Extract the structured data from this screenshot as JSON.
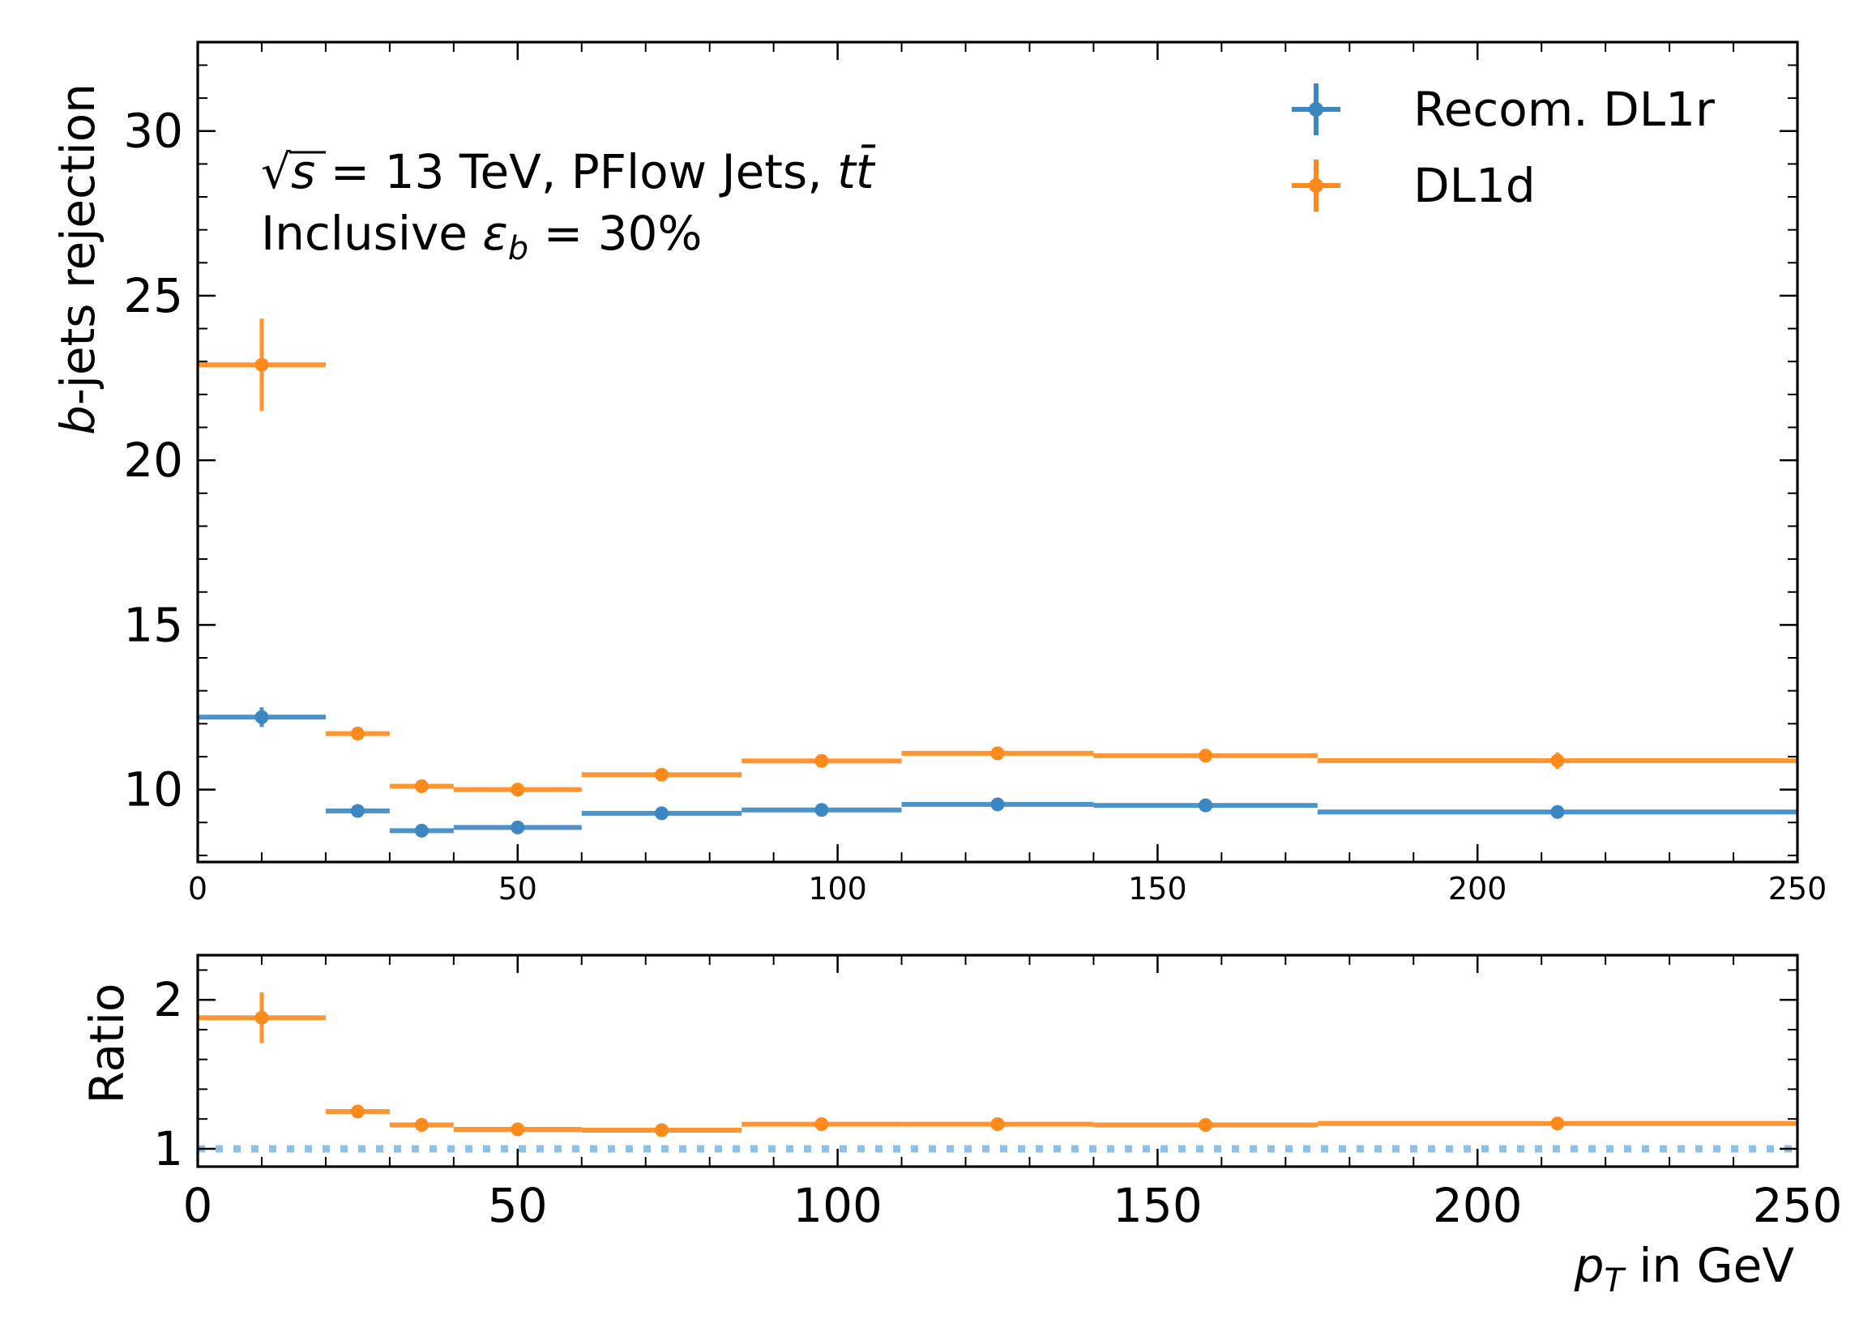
{
  "colors": {
    "dl1r": "#3a87c4",
    "dl1d": "#ff8a1c",
    "reference_line": "#8fbfe3"
  },
  "annotation": {
    "line1_sqrt": "√",
    "line1_s": "s",
    "line1_rest": " = 13 TeV, PFlow Jets, ",
    "line1_tt": "tt̄",
    "line2_pre": "Inclusive ",
    "line2_eps": "ε",
    "line2_sub": "b",
    "line2_post": " = 30%"
  },
  "chart_data": [
    {
      "type": "scatter",
      "panel": "main",
      "ylabel_italic": "b",
      "ylabel_rest": "-jets rejection",
      "xlim": [
        0,
        250
      ],
      "ylim": [
        7.8,
        32.7
      ],
      "x_ticks": [
        "0",
        "50",
        "100",
        "150",
        "200",
        "250"
      ],
      "y_ticks": [
        "10",
        "15",
        "20",
        "25",
        "30"
      ],
      "legend_position": "top-right",
      "series": [
        {
          "name": "Recom. DL1r",
          "color_key": "dl1r",
          "points": [
            {
              "x_lo": 0,
              "x_hi": 20,
              "x": 10,
              "y": 12.2,
              "yerr": 0.3
            },
            {
              "x_lo": 20,
              "x_hi": 30,
              "x": 25,
              "y": 9.35,
              "yerr": 0.12
            },
            {
              "x_lo": 30,
              "x_hi": 40,
              "x": 35,
              "y": 8.75,
              "yerr": 0.1
            },
            {
              "x_lo": 40,
              "x_hi": 60,
              "x": 50,
              "y": 8.85,
              "yerr": 0.1
            },
            {
              "x_lo": 60,
              "x_hi": 85,
              "x": 72.5,
              "y": 9.28,
              "yerr": 0.1
            },
            {
              "x_lo": 85,
              "x_hi": 110,
              "x": 97.5,
              "y": 9.38,
              "yerr": 0.1
            },
            {
              "x_lo": 110,
              "x_hi": 140,
              "x": 125,
              "y": 9.55,
              "yerr": 0.1
            },
            {
              "x_lo": 140,
              "x_hi": 175,
              "x": 157.5,
              "y": 9.52,
              "yerr": 0.1
            },
            {
              "x_lo": 175,
              "x_hi": 250,
              "x": 212.5,
              "y": 9.32,
              "yerr": 0.12
            }
          ]
        },
        {
          "name": "DL1d",
          "color_key": "dl1d",
          "points": [
            {
              "x_lo": 0,
              "x_hi": 20,
              "x": 10,
              "y": 22.9,
              "yerr": 1.4
            },
            {
              "x_lo": 20,
              "x_hi": 30,
              "x": 25,
              "y": 11.7,
              "yerr": 0.15
            },
            {
              "x_lo": 30,
              "x_hi": 40,
              "x": 35,
              "y": 10.1,
              "yerr": 0.12
            },
            {
              "x_lo": 40,
              "x_hi": 60,
              "x": 50,
              "y": 10.0,
              "yerr": 0.1
            },
            {
              "x_lo": 60,
              "x_hi": 85,
              "x": 72.5,
              "y": 10.45,
              "yerr": 0.1
            },
            {
              "x_lo": 85,
              "x_hi": 110,
              "x": 97.5,
              "y": 10.87,
              "yerr": 0.1
            },
            {
              "x_lo": 110,
              "x_hi": 140,
              "x": 125,
              "y": 11.1,
              "yerr": 0.1
            },
            {
              "x_lo": 140,
              "x_hi": 175,
              "x": 157.5,
              "y": 11.03,
              "yerr": 0.12
            },
            {
              "x_lo": 175,
              "x_hi": 250,
              "x": 212.5,
              "y": 10.88,
              "yerr": 0.25
            }
          ]
        }
      ]
    },
    {
      "type": "scatter",
      "panel": "ratio",
      "ylabel": "Ratio",
      "xlabel_italic": "p",
      "xlabel_sub": "T",
      "xlabel_rest": " in GeV",
      "xlim": [
        0,
        250
      ],
      "ylim": [
        0.88,
        2.3
      ],
      "x_ticks": [
        "0",
        "50",
        "100",
        "150",
        "200",
        "250"
      ],
      "y_ticks": [
        "1",
        "2"
      ],
      "reference_line_y": 1,
      "series": [
        {
          "name": "DL1d",
          "color_key": "dl1d",
          "points": [
            {
              "x_lo": 0,
              "x_hi": 20,
              "x": 10,
              "y": 1.88,
              "yerr": 0.17
            },
            {
              "x_lo": 20,
              "x_hi": 30,
              "x": 25,
              "y": 1.25,
              "yerr": 0.02
            },
            {
              "x_lo": 30,
              "x_hi": 40,
              "x": 35,
              "y": 1.16,
              "yerr": 0.02
            },
            {
              "x_lo": 40,
              "x_hi": 60,
              "x": 50,
              "y": 1.13,
              "yerr": 0.02
            },
            {
              "x_lo": 60,
              "x_hi": 85,
              "x": 72.5,
              "y": 1.125,
              "yerr": 0.02
            },
            {
              "x_lo": 85,
              "x_hi": 110,
              "x": 97.5,
              "y": 1.165,
              "yerr": 0.02
            },
            {
              "x_lo": 110,
              "x_hi": 140,
              "x": 125,
              "y": 1.165,
              "yerr": 0.02
            },
            {
              "x_lo": 140,
              "x_hi": 175,
              "x": 157.5,
              "y": 1.16,
              "yerr": 0.02
            },
            {
              "x_lo": 175,
              "x_hi": 250,
              "x": 212.5,
              "y": 1.17,
              "yerr": 0.03
            }
          ]
        }
      ]
    }
  ]
}
